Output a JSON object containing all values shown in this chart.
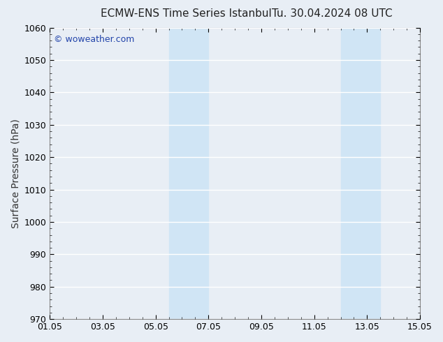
{
  "title_left": "ECMW-ENS Time Series Istanbul",
  "title_right": "Tu. 30.04.2024 08 UTC",
  "ylabel": "Surface Pressure (hPa)",
  "ylim": [
    970,
    1060
  ],
  "yticks": [
    970,
    980,
    990,
    1000,
    1010,
    1020,
    1030,
    1040,
    1050,
    1060
  ],
  "xlim_start": 0,
  "xlim_end": 14,
  "xtick_positions": [
    0,
    2,
    4,
    6,
    8,
    10,
    12,
    14
  ],
  "xtick_labels": [
    "01.05",
    "03.05",
    "05.05",
    "07.05",
    "09.05",
    "11.05",
    "13.05",
    "15.05"
  ],
  "bg_color": "#e8eef5",
  "plot_bg_color": "#e8eef5",
  "shaded_regions": [
    {
      "x_start": 4.5,
      "x_end": 6.0
    },
    {
      "x_start": 11.0,
      "x_end": 12.5
    }
  ],
  "shaded_color": "#d0e5f5",
  "watermark_text": "© woweather.com",
  "watermark_color": "#2244aa",
  "title_fontsize": 11,
  "tick_fontsize": 9,
  "ylabel_fontsize": 10,
  "grid_color": "#ffffff",
  "spine_color": "#888888"
}
